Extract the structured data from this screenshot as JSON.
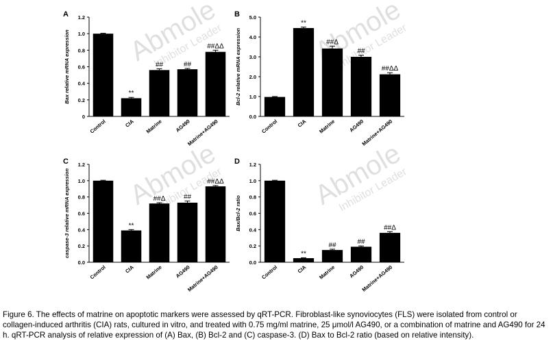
{
  "chart_data": [
    {
      "type": "bar",
      "panel_label": "A",
      "y_label": "Bax relative mRNA expression",
      "categories": [
        "Control",
        "CIA",
        "Matrine",
        "AG490",
        "Matrine+AG490"
      ],
      "values": [
        1.0,
        0.22,
        0.56,
        0.57,
        0.78
      ],
      "errors": [
        0.005,
        0.01,
        0.015,
        0.01,
        0.02
      ],
      "annotations": [
        null,
        "**",
        "##",
        "##",
        "##ΔΔ"
      ],
      "color": "#000000",
      "ylim": [
        0,
        1.2
      ],
      "yticks": [
        0,
        0.2,
        0.4,
        0.6,
        0.8,
        {
          "value": 1.0,
          "label": "1.0"
        },
        1.2
      ]
    },
    {
      "type": "bar",
      "panel_label": "B",
      "y_label": "Bcl-2 relative mRNA expression",
      "categories": [
        "Control",
        "CIA",
        "Matrine",
        "AG490",
        "Matrine+AG490"
      ],
      "values": [
        0.98,
        4.45,
        3.42,
        3.0,
        2.12
      ],
      "errors": [
        0.02,
        0.05,
        0.12,
        0.08,
        0.08
      ],
      "annotations": [
        null,
        "**",
        "##Δ",
        "##",
        "##ΔΔ"
      ],
      "color": "#000000",
      "ylim": [
        0,
        5.0
      ],
      "yticks": [
        {
          "value": 0,
          "label": "0.0"
        },
        {
          "value": 1,
          "label": "1.0"
        },
        {
          "value": 2,
          "label": "2.0"
        },
        {
          "value": 3,
          "label": "3.0"
        },
        {
          "value": 4,
          "label": "4.0"
        },
        {
          "value": 5,
          "label": "5.0"
        }
      ]
    },
    {
      "type": "bar",
      "panel_label": "C",
      "y_label": "caspase-3 relative mRNA expression",
      "categories": [
        "Control",
        "CIA",
        "Matrine",
        "AG490",
        "Matrine+AG490"
      ],
      "values": [
        1.0,
        0.39,
        0.72,
        0.73,
        0.93
      ],
      "errors": [
        0.005,
        0.01,
        0.01,
        0.02,
        0.01
      ],
      "annotations": [
        null,
        "**",
        "##Δ",
        "##",
        "##ΔΔ"
      ],
      "color": "#000000",
      "ylim": [
        0,
        1.2
      ],
      "yticks": [
        {
          "value": 0,
          "label": "0.0"
        },
        0.2,
        0.4,
        0.6,
        0.8,
        {
          "value": 1.0,
          "label": "1.0"
        },
        1.2
      ]
    },
    {
      "type": "bar",
      "panel_label": "D",
      "y_label": "Bax/Bcl-2 ratio",
      "categories": [
        "Control",
        "CIA",
        "Matrine",
        "AG490",
        "Matrine+AG490"
      ],
      "values": [
        1.0,
        0.05,
        0.15,
        0.19,
        0.36
      ],
      "errors": [
        0.005,
        0.005,
        0.01,
        0.01,
        0.015
      ],
      "annotations": [
        null,
        "**",
        "##",
        "##",
        "##Δ"
      ],
      "color": "#000000",
      "ylim": [
        0,
        1.2
      ],
      "yticks": [
        {
          "value": 0,
          "label": "0.0"
        },
        0.2,
        0.4,
        0.6,
        0.8,
        {
          "value": 1.0,
          "label": "1.0"
        },
        1.2
      ]
    }
  ],
  "watermark": "Abmole",
  "watermark_sub": "Inhibitor Leader",
  "caption": "Figure 6. The effects of matrine on apoptotic markers were assessed by qRT-PCR. Fibroblast-like synoviocytes (FLS) were isolated from control or collagen-induced arthritis (CIA) rats, cultured in vitro, and treated with 0.75 mg/ml matrine, 25 μmol/l AG490, or a combination of matrine and AG490 for 24 h. qRT-PCR analysis of relative expression of (A) Bax, (B) Bcl-2 and (C) caspase-3. (D) Bax to Bcl-2 ratio (based on relative intensity)."
}
